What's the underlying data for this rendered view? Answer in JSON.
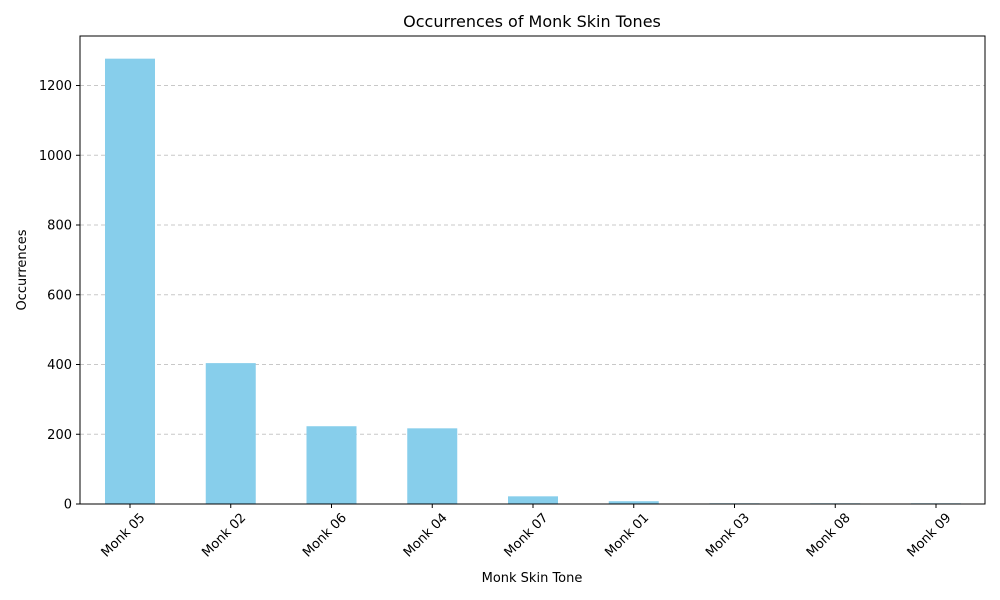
{
  "chart_data": {
    "type": "bar",
    "title": "Occurrences of Monk Skin Tones",
    "xlabel": "Monk Skin Tone",
    "ylabel": "Occurrences",
    "categories": [
      "Monk 05",
      "Monk 02",
      "Monk 06",
      "Monk 04",
      "Monk 07",
      "Monk 01",
      "Monk 03",
      "Monk 08",
      "Monk 09"
    ],
    "values": [
      1277,
      404,
      223,
      217,
      22,
      8,
      2,
      2,
      2
    ],
    "ylim": [
      0,
      1342
    ],
    "yticks": [
      0,
      200,
      400,
      600,
      800,
      1000,
      1200
    ],
    "grid": "y-dashed",
    "bar_color": "#87CEEB"
  }
}
